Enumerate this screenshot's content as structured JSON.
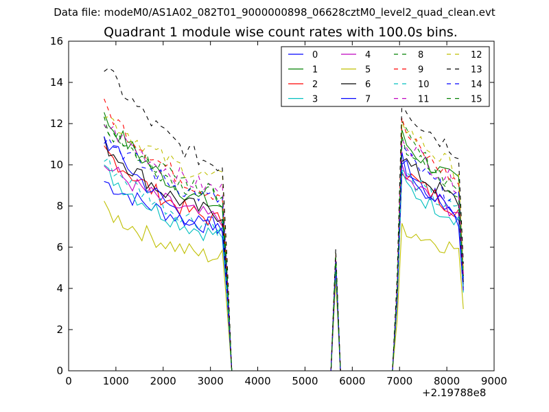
{
  "suptitle": "Data file: modeM0/AS1A02_082T01_9000000898_06628cztM0_level2_quad_clean.evt",
  "chart_data": {
    "type": "line",
    "title": "Quadrant 1 module wise count rates with 100.0s bins.",
    "xlabel": "",
    "ylabel": "",
    "x_offset_label": "+2.19788e8",
    "xlim": [
      0,
      9000
    ],
    "ylim": [
      0,
      16
    ],
    "xticks": [
      0,
      1000,
      2000,
      3000,
      4000,
      5000,
      6000,
      7000,
      8000,
      9000
    ],
    "yticks": [
      0,
      2,
      4,
      6,
      8,
      10,
      12,
      14,
      16
    ],
    "legend_position": "top-right",
    "legend_columns": 4,
    "segments": {
      "seg1_x": [
        750,
        850,
        950,
        1050,
        1150,
        1250,
        1350,
        1450,
        1550,
        1650,
        1750,
        1850,
        1950,
        2050,
        2150,
        2250,
        2350,
        2450,
        2550,
        2650,
        2750,
        2850,
        2950,
        3050,
        3150,
        3250,
        3350,
        3450
      ],
      "seg2_x": [
        3550,
        3650,
        3750,
        3850,
        3950,
        4050,
        4150,
        4250,
        4350,
        4450,
        4550,
        4650,
        4750,
        4850,
        4950,
        5050,
        5150,
        5250,
        5350,
        5450,
        5550,
        5650,
        5750
      ],
      "seg3_x": [
        5850,
        5950,
        6050,
        6150,
        6250,
        6350,
        6450,
        6550,
        6650,
        6750,
        6850,
        6950,
        7050,
        7150,
        7250,
        7350,
        7450,
        7550,
        7650,
        7750,
        7850,
        7950,
        8050,
        8150,
        8250,
        8350
      ]
    },
    "series": [
      {
        "name": "0",
        "color": "#0000ff",
        "dash": false,
        "start": 9.2,
        "end": 7.0,
        "gap_spike": 5.0,
        "rise": 10.2,
        "tail": 7.6,
        "final": 4.2
      },
      {
        "name": "1",
        "color": "#008000",
        "dash": false,
        "start": 12.3,
        "end": 8.0,
        "gap_spike": 5.4,
        "rise": 11.4,
        "tail": 9.1,
        "final": 4.5
      },
      {
        "name": "2",
        "color": "#ff0000",
        "dash": false,
        "start": 10.7,
        "end": 7.3,
        "gap_spike": 5.0,
        "rise": 10.0,
        "tail": 7.8,
        "final": 4.0
      },
      {
        "name": "3",
        "color": "#00bfbf",
        "dash": false,
        "start": 9.7,
        "end": 6.6,
        "gap_spike": 4.8,
        "rise": 9.3,
        "tail": 7.4,
        "final": 3.8
      },
      {
        "name": "4",
        "color": "#bf00bf",
        "dash": false,
        "start": 10.0,
        "end": 7.4,
        "gap_spike": 5.1,
        "rise": 9.6,
        "tail": 7.7,
        "final": 4.2
      },
      {
        "name": "5",
        "color": "#bfbf00",
        "dash": false,
        "start": 7.8,
        "end": 5.5,
        "gap_spike": 4.4,
        "rise": 7.1,
        "tail": 5.9,
        "final": 3.0
      },
      {
        "name": "6",
        "color": "#000000",
        "dash": false,
        "start": 11.0,
        "end": 7.6,
        "gap_spike": 5.2,
        "rise": 10.5,
        "tail": 8.2,
        "final": 4.3
      },
      {
        "name": "7",
        "color": "#0000ff",
        "dash": false,
        "start": 11.3,
        "end": 6.8,
        "gap_spike": 5.0,
        "rise": 10.4,
        "tail": 7.4,
        "final": 3.9
      },
      {
        "name": "8",
        "color": "#008000",
        "dash": true,
        "start": 12.0,
        "end": 8.4,
        "gap_spike": 5.4,
        "rise": 11.8,
        "tail": 8.9,
        "final": 4.6
      },
      {
        "name": "9",
        "color": "#ff0000",
        "dash": true,
        "start": 12.8,
        "end": 8.6,
        "gap_spike": 5.5,
        "rise": 12.0,
        "tail": 9.1,
        "final": 4.6
      },
      {
        "name": "10",
        "color": "#00bfbf",
        "dash": true,
        "start": 10.2,
        "end": 7.0,
        "gap_spike": 5.0,
        "rise": 9.8,
        "tail": 7.7,
        "final": 4.0
      },
      {
        "name": "11",
        "color": "#bf00bf",
        "dash": true,
        "start": 12.0,
        "end": 8.8,
        "gap_spike": 5.6,
        "rise": 11.6,
        "tail": 9.0,
        "final": 4.7
      },
      {
        "name": "12",
        "color": "#bfbf00",
        "dash": true,
        "start": 12.5,
        "end": 9.3,
        "gap_spike": 5.7,
        "rise": 12.3,
        "tail": 9.7,
        "final": 5.0
      },
      {
        "name": "13",
        "color": "#000000",
        "dash": true,
        "start": 14.7,
        "end": 10.0,
        "gap_spike": 5.9,
        "rise": 13.2,
        "tail": 10.6,
        "final": 5.2
      },
      {
        "name": "14",
        "color": "#0000ff",
        "dash": true,
        "start": 11.4,
        "end": 8.3,
        "gap_spike": 5.3,
        "rise": 10.9,
        "tail": 8.3,
        "final": 4.4
      },
      {
        "name": "15",
        "color": "#008000",
        "dash": true,
        "start": 11.9,
        "end": 8.7,
        "gap_spike": 5.5,
        "rise": 11.3,
        "tail": 8.7,
        "final": 4.6
      }
    ]
  }
}
